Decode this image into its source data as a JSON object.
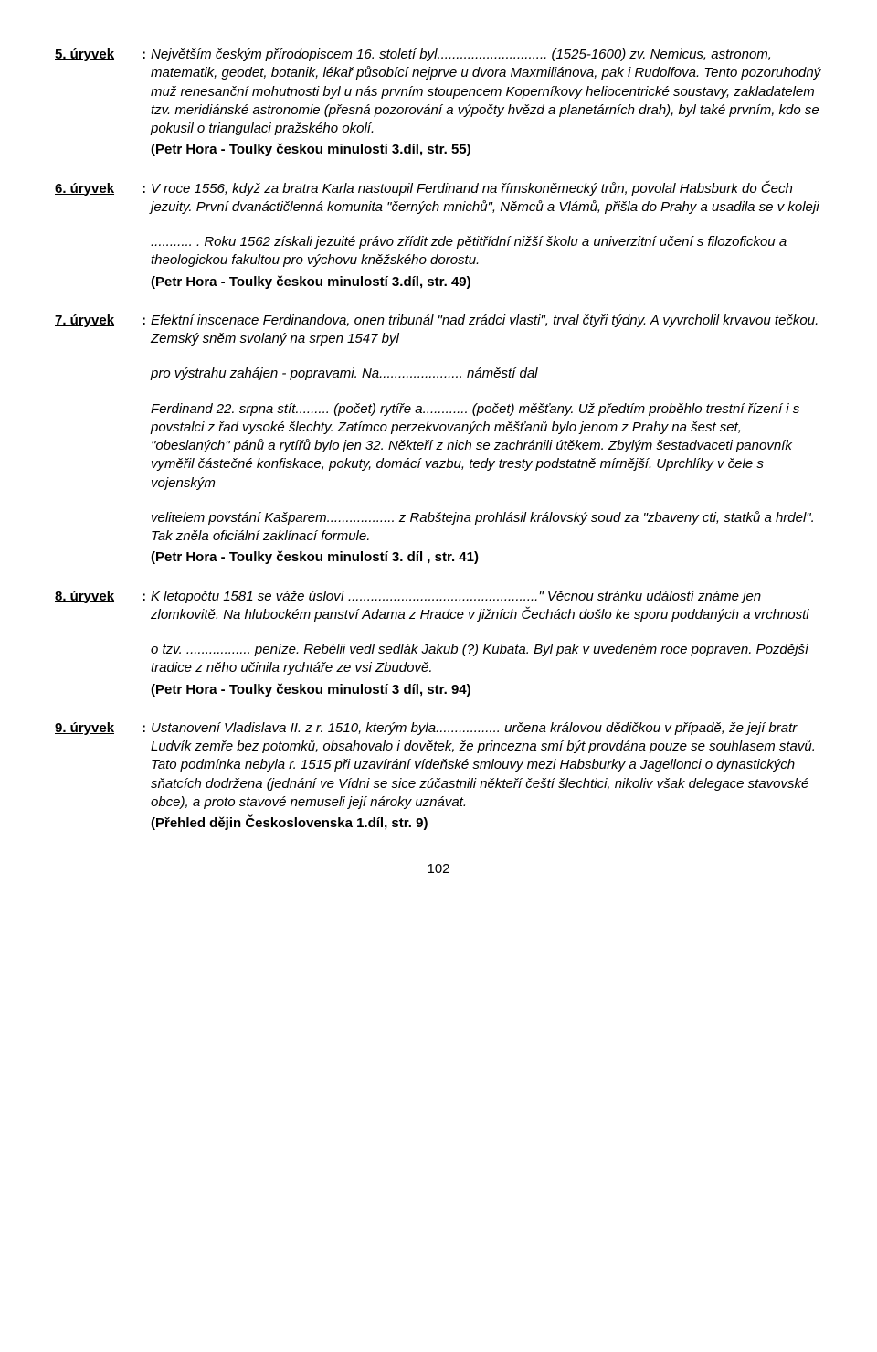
{
  "entries": [
    {
      "label": "5. úryvek",
      "paragraphs": [
        "Největším českým přírodopiscem 16. století byl............................. (1525-1600) zv. Nemicus, astronom, matematik, geodet, botanik, lékař působící nejprve u dvora Maxmiliánova, pak i Rudolfova. Tento pozoruhodný muž renesanční mohutnosti byl u nás prvním stoupencem Koperníkovy heliocentrické soustavy, zakladatelem tzv. meridiánské astronomie (přesná pozorování a výpočty hvězd a planetárních drah), byl také prvním, kdo se pokusil o triangulaci pražského okolí."
      ],
      "source": "(Petr Hora - Toulky českou minulostí 3.díl, str. 55)"
    },
    {
      "label": "6. úryvek",
      "paragraphs": [
        "V roce 1556, když za bratra Karla nastoupil Ferdinand na římskoněmecký trůn, povolal Habsburk do Čech jezuity. První dvanáctičlenná komunita \"černých mnichů\", Němců a Vlámů, přišla do Prahy a usadila se v koleji",
        "........... . Roku 1562 získali jezuité právo zřídit zde pětitřídní nižší školu a univerzitní učení s filozofickou a theologickou fakultou pro výchovu kněžského dorostu."
      ],
      "para_gaps": [
        false,
        true
      ],
      "source": "(Petr Hora - Toulky českou minulostí 3.díl,  str. 49)"
    },
    {
      "label": "7. úryvek",
      "paragraphs": [
        "Efektní inscenace Ferdinandova, onen tribunál \"nad zrádci vlasti\", trval čtyři týdny. A vyvrcholil krvavou tečkou. Zemský sněm svolaný na srpen 1547 byl",
        "pro výstrahu zahájen - popravami. Na......................  náměstí dal",
        "Ferdinand 22. srpna stít......... (počet) rytíře a............ (počet) měšťany. Už předtím proběhlo trestní řízení i s povstalci z řad vysoké šlechty. Zatímco perzekvovaných měšťanů bylo jenom z Prahy na šest set, \"obeslaných\" pánů a rytířů bylo jen 32. Někteří z nich se zachránili útěkem. Zbylým šestadvaceti panovník vyměřil částečné konfiskace, pokuty, domácí vazbu, tedy tresty podstatně mírnější. Uprchlíky v čele s vojenským",
        "velitelem povstání Kašparem..................  z Rabštejna prohlásil královský soud za \"zbaveny cti, statků a hrdel\". Tak zněla oficiální zaklínací formule."
      ],
      "para_gaps": [
        false,
        true,
        true,
        true
      ],
      "source": "(Petr Hora - Toulky českou minulostí 3. díl , str. 41)"
    },
    {
      "label": "8. úryvek",
      "paragraphs": [
        "K letopočtu 1581 se váže úsloví ..................................................\" Věcnou stránku událostí známe jen zlomkovitě. Na hlubockém panství Adama z Hradce v jižních Čechách došlo ke sporu poddaných a vrchnosti",
        "o tzv. ................. peníze. Rebélii vedl sedlák Jakub (?) Kubata. Byl pak v uvedeném roce popraven. Pozdější tradice z něho učinila rychtáře ze vsi Zbudově."
      ],
      "para_gaps": [
        false,
        true
      ],
      "source": "(Petr Hora - Toulky českou minulostí 3 díl, str. 94)"
    },
    {
      "label": "9. úryvek",
      "paragraphs": [
        "Ustanovení Vladislava II. z  r. 1510, kterým byla................. určena královou dědičkou v případě, že její bratr Ludvík zemře bez potomků, obsahovalo i dovětek, že princezna smí být provdána pouze se souhlasem stavů. Tato podmínka nebyla r. 1515 při uzavírání vídeňské smlouvy mezi Habsburky a Jagellonci o dynastických sňatcích dodržena (jednání ve Vídni se sice zúčastnili někteří čeští šlechtici, nikoliv však delegace stavovské obce), a proto stavové nemuseli její nároky uznávat."
      ],
      "source": "(Přehled dějin Československa 1.díl, str. 9)"
    }
  ],
  "pageNumber": "102"
}
